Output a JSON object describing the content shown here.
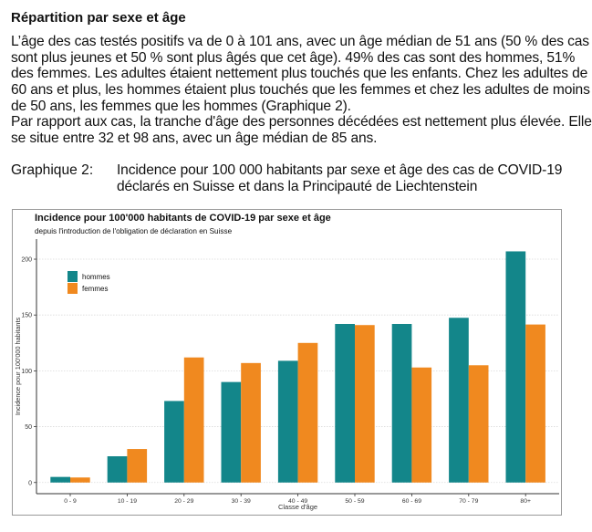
{
  "heading": "Répartition par sexe et âge",
  "paragraph_lines": [
    "L’âge des cas testés positifs va de 0 à 101 ans, avec un âge médian de 51 ans (50 % des cas",
    "sont plus jeunes et 50 % sont plus âgés que cet âge). 49% des cas sont des hommes, 51%",
    "des femmes. Les adultes étaient nettement plus touchés que les enfants. Chez les adultes de",
    "60 ans et plus, les hommes étaient plus touchés que les femmes et chez les adultes de moins",
    "de 50 ans, les femmes que les hommes (Graphique 2).",
    "Par rapport aux cas, la tranche d'âge des personnes décédées est nettement plus élevée. Elle",
    "se situe entre 32 et 98 ans, avec un âge médian de 85 ans."
  ],
  "caption": {
    "label": "Graphique 2:",
    "lines": [
      "Incidence pour 100 000 habitants par sexe et âge des cas de COVID-19",
      "déclarés en Suisse et dans la Principauté de Liechtenstein"
    ]
  },
  "chart_data": {
    "type": "bar",
    "title": "Incidence pour 100'000 habitants de COVID-19 par sexe et âge",
    "subtitle": "depuis l'introduction de l'obligation de déclaration en Suisse",
    "xlabel": "Classe d'âge",
    "ylabel": "Incidence pour 100'000 habitants",
    "categories": [
      "0 - 9",
      "10 - 19",
      "20 - 29",
      "30 - 39",
      "40 - 49",
      "50 - 59",
      "60 - 69",
      "70 - 79",
      "80+"
    ],
    "series": [
      {
        "name": "hommes",
        "color": "#13868a",
        "values": [
          5,
          23.5,
          73,
          90,
          109,
          142,
          142,
          147.5,
          207
        ]
      },
      {
        "name": "femmes",
        "color": "#f0891f",
        "values": [
          4.5,
          30,
          112,
          107,
          125,
          141,
          103,
          105,
          141.5
        ]
      }
    ],
    "yticks": [
      0,
      50,
      100,
      150,
      200
    ],
    "ylim": [
      -10,
      218
    ],
    "grid": "horizontal dotted",
    "legend_position": "top-left"
  }
}
